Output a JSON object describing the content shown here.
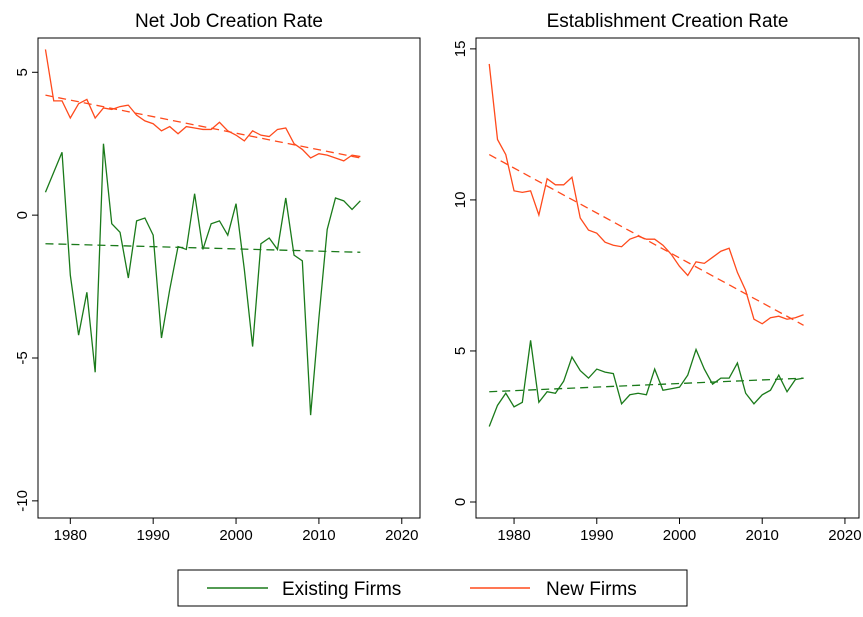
{
  "chart_data": [
    {
      "type": "line",
      "title": "Net Job Creation Rate",
      "x": [
        1977,
        1978,
        1979,
        1980,
        1981,
        1982,
        1983,
        1984,
        1985,
        1986,
        1987,
        1988,
        1989,
        1990,
        1991,
        1992,
        1993,
        1994,
        1995,
        1996,
        1997,
        1998,
        1999,
        2000,
        2001,
        2002,
        2003,
        2004,
        2005,
        2006,
        2007,
        2008,
        2009,
        2010,
        2011,
        2012,
        2013,
        2014,
        2015
      ],
      "series": [
        {
          "name": "Existing Firms",
          "color": "#1a7a1a",
          "values": [
            0.8,
            1.5,
            2.2,
            -2.1,
            -4.2,
            -2.7,
            -5.5,
            2.5,
            -0.3,
            -0.6,
            -2.2,
            -0.2,
            -0.1,
            -0.7,
            -4.3,
            -2.6,
            -1.1,
            -1.2,
            0.75,
            -1.2,
            -0.3,
            -0.2,
            -0.7,
            0.4,
            -1.9,
            -4.6,
            -1.0,
            -0.8,
            -1.2,
            0.6,
            -1.4,
            -1.6,
            -7.0,
            -3.6,
            -0.5,
            0.6,
            0.5,
            0.2,
            0.5
          ],
          "trend": [
            -1.0,
            -1.3
          ]
        },
        {
          "name": "New Firms",
          "color": "#ff4a1c",
          "values": [
            5.8,
            4.0,
            4.0,
            3.4,
            3.9,
            4.05,
            3.4,
            3.75,
            3.7,
            3.8,
            3.85,
            3.5,
            3.3,
            3.2,
            2.95,
            3.1,
            2.85,
            3.1,
            3.05,
            3.0,
            3.0,
            3.25,
            2.95,
            2.8,
            2.6,
            2.95,
            2.8,
            2.75,
            3.0,
            3.05,
            2.5,
            2.3,
            2.0,
            2.15,
            2.1,
            2.0,
            1.9,
            2.1,
            2.05
          ],
          "trend": [
            4.2,
            2.0
          ]
        }
      ],
      "xlim": [
        1976.1,
        2022.2
      ],
      "ylim": [
        -10.6,
        6.2
      ],
      "xticks": [
        1980,
        1990,
        2000,
        2010,
        2020
      ],
      "yticks": [
        -10,
        -5,
        0,
        5
      ]
    },
    {
      "type": "line",
      "title": "Establishment Creation Rate",
      "x": [
        1977,
        1978,
        1979,
        1980,
        1981,
        1982,
        1983,
        1984,
        1985,
        1986,
        1987,
        1988,
        1989,
        1990,
        1991,
        1992,
        1993,
        1994,
        1995,
        1996,
        1997,
        1998,
        1999,
        2000,
        2001,
        2002,
        2003,
        2004,
        2005,
        2006,
        2007,
        2008,
        2009,
        2010,
        2011,
        2012,
        2013,
        2014,
        2015
      ],
      "series": [
        {
          "color": "#1a7a1a",
          "values": [
            2.5,
            3.2,
            3.6,
            3.15,
            3.3,
            5.35,
            3.3,
            3.65,
            3.6,
            4.0,
            4.8,
            4.35,
            4.1,
            4.4,
            4.3,
            4.25,
            3.25,
            3.55,
            3.6,
            3.55,
            4.4,
            3.7,
            3.75,
            3.8,
            4.2,
            5.05,
            4.4,
            3.9,
            4.1,
            4.1,
            4.6,
            3.6,
            3.25,
            3.55,
            3.7,
            4.2,
            3.65,
            4.05,
            4.1
          ],
          "trend": [
            3.65,
            4.1
          ]
        },
        {
          "color": "#ff4a1c",
          "values": [
            14.5,
            12.0,
            11.5,
            10.3,
            10.25,
            10.3,
            9.5,
            10.7,
            10.5,
            10.5,
            10.75,
            9.4,
            9.0,
            8.9,
            8.6,
            8.5,
            8.45,
            8.7,
            8.8,
            8.7,
            8.7,
            8.5,
            8.2,
            7.8,
            7.5,
            7.95,
            7.9,
            8.1,
            8.3,
            8.4,
            7.6,
            7.0,
            6.05,
            5.9,
            6.1,
            6.15,
            6.05,
            6.1,
            6.2
          ],
          "trend": [
            11.5,
            5.85
          ]
        }
      ],
      "xlim": [
        1975.4,
        2021.7
      ],
      "ylim": [
        -0.53,
        15.36
      ],
      "xticks": [
        1980,
        1990,
        2000,
        2010,
        2020
      ],
      "yticks": [
        0,
        5,
        10,
        15
      ]
    }
  ]
}
